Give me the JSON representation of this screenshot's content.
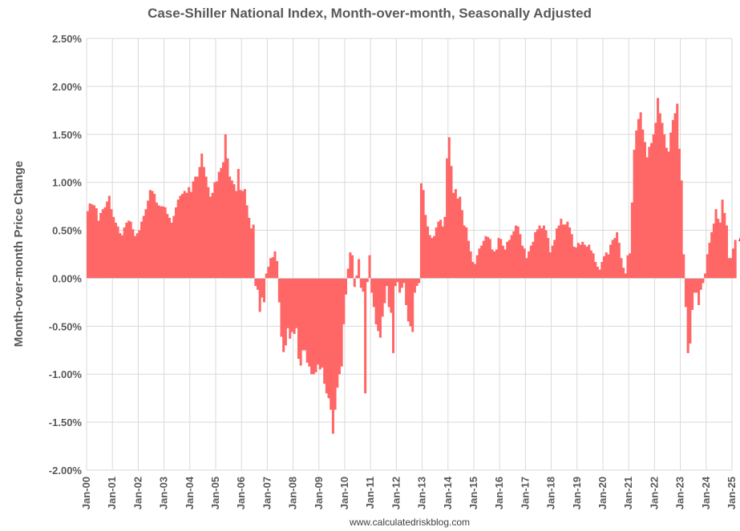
{
  "chart_data": {
    "type": "bar",
    "title": "Case-Shiller National Index, Month-over-month, Seasonally Adjusted",
    "ylabel": "Month-over-month Price Change",
    "xlabel": "",
    "source": "www.calculatedriskblog.com",
    "ylim": [
      -2.0,
      2.5
    ],
    "y_ticks": [
      "-2.00%",
      "-1.50%",
      "-1.00%",
      "-0.50%",
      "0.00%",
      "0.50%",
      "1.00%",
      "1.50%",
      "2.00%",
      "2.50%"
    ],
    "x_ticks": [
      "Jan-00",
      "Jan-01",
      "Jan-02",
      "Jan-03",
      "Jan-04",
      "Jan-05",
      "Jan-06",
      "Jan-07",
      "Jan-08",
      "Jan-09",
      "Jan-10",
      "Jan-11",
      "Jan-12",
      "Jan-13",
      "Jan-14",
      "Jan-15",
      "Jan-16",
      "Jan-17",
      "Jan-18",
      "Jan-19",
      "Jan-20",
      "Jan-21",
      "Jan-22",
      "Jan-23",
      "Jan-24",
      "Jan-25"
    ],
    "grid": true,
    "bar_color": "#ff6666",
    "annotation_arrow_color": "#e0201c",
    "start": "Jan-2000",
    "end": "Jan-2024",
    "values": [
      0.7,
      0.78,
      0.77,
      0.76,
      0.73,
      0.6,
      0.68,
      0.72,
      0.74,
      0.8,
      0.86,
      0.72,
      0.64,
      0.58,
      0.54,
      0.47,
      0.45,
      0.53,
      0.58,
      0.6,
      0.59,
      0.51,
      0.44,
      0.47,
      0.5,
      0.59,
      0.65,
      0.72,
      0.81,
      0.92,
      0.91,
      0.88,
      0.79,
      0.76,
      0.75,
      0.75,
      0.74,
      0.67,
      0.63,
      0.58,
      0.65,
      0.74,
      0.82,
      0.86,
      0.88,
      0.91,
      0.89,
      0.95,
      0.9,
      1.01,
      1.06,
      1.06,
      1.16,
      1.3,
      1.16,
      1.06,
      0.95,
      0.85,
      0.89,
      1.0,
      1.01,
      1.11,
      1.15,
      1.21,
      1.5,
      1.25,
      1.06,
      1.02,
      0.98,
      0.91,
      1.14,
      0.92,
      0.91,
      0.93,
      0.76,
      0.63,
      0.52,
      0.56,
      -0.08,
      -0.12,
      -0.35,
      -0.2,
      -0.25,
      0.05,
      0.12,
      0.21,
      0.22,
      0.28,
      0.18,
      -0.25,
      -0.61,
      -0.77,
      -0.7,
      -0.52,
      -0.63,
      -0.56,
      -0.58,
      -0.52,
      -0.84,
      -0.91,
      -0.75,
      -0.75,
      -0.88,
      -0.92,
      -1.0,
      -1.0,
      -0.98,
      -0.9,
      -0.95,
      -0.93,
      -1.1,
      -1.2,
      -1.25,
      -1.37,
      -1.62,
      -1.37,
      -1.14,
      -1.0,
      -0.92,
      -0.48,
      -0.17,
      0.1,
      0.27,
      0.24,
      -0.09,
      0.03,
      0.2,
      -0.1,
      -0.14,
      -1.2,
      -0.04,
      0.24,
      -0.15,
      -0.3,
      -0.48,
      -0.55,
      -0.62,
      -0.4,
      -0.26,
      -0.08,
      -0.3,
      -0.36,
      -0.78,
      -0.08,
      -0.04,
      -0.15,
      -0.1,
      -0.05,
      -0.28,
      -0.45,
      -0.5,
      -0.56,
      -0.15,
      -0.08,
      -0.05,
      0.99,
      0.92,
      0.66,
      0.54,
      0.45,
      0.42,
      0.44,
      0.53,
      0.59,
      0.61,
      0.54,
      0.64,
      1.25,
      1.47,
      1.17,
      0.89,
      0.93,
      0.83,
      0.85,
      0.71,
      0.55,
      0.53,
      0.39,
      0.28,
      0.17,
      0.15,
      0.24,
      0.31,
      0.34,
      0.39,
      0.44,
      0.43,
      0.41,
      0.3,
      0.28,
      0.3,
      0.42,
      0.41,
      0.34,
      0.3,
      0.38,
      0.4,
      0.45,
      0.49,
      0.55,
      0.54,
      0.46,
      0.34,
      0.31,
      0.21,
      0.28,
      0.34,
      0.38,
      0.48,
      0.51,
      0.55,
      0.52,
      0.55,
      0.5,
      0.42,
      0.27,
      0.34,
      0.4,
      0.52,
      0.55,
      0.62,
      0.56,
      0.56,
      0.59,
      0.53,
      0.46,
      0.33,
      0.32,
      0.37,
      0.35,
      0.38,
      0.35,
      0.33,
      0.35,
      0.29,
      0.26,
      0.17,
      0.12,
      0.09,
      0.17,
      0.23,
      0.27,
      0.25,
      0.35,
      0.4,
      0.42,
      0.48,
      0.37,
      0.21,
      0.11,
      0.05,
      0.24,
      0.26,
      0.79,
      1.34,
      1.54,
      1.66,
      1.73,
      1.55,
      1.42,
      1.26,
      1.37,
      1.41,
      1.5,
      1.62,
      1.88,
      1.72,
      1.62,
      1.5,
      1.36,
      1.32,
      1.52,
      1.65,
      1.72,
      1.82,
      1.35,
      1.02,
      0.25,
      -0.3,
      -0.78,
      -0.68,
      -0.33,
      -0.15,
      -0.15,
      -0.28,
      -0.12,
      -0.05,
      0.05,
      0.25,
      0.37,
      0.48,
      0.57,
      0.72,
      0.62,
      0.58,
      0.82,
      0.68,
      0.55,
      0.21,
      0.21,
      0.31,
      0.4
    ]
  }
}
